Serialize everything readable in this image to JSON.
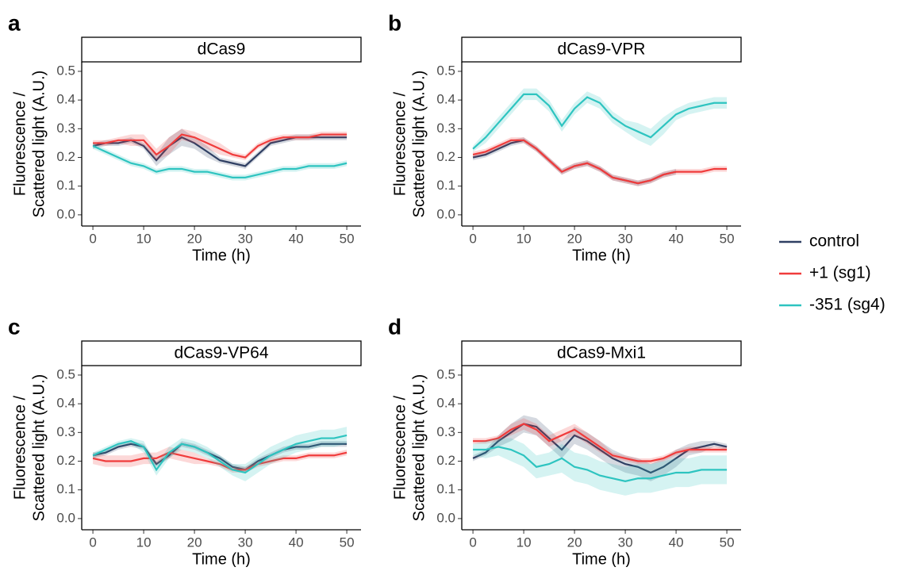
{
  "chart_data": [
    {
      "type": "line",
      "panel": "a",
      "title": "dCas9",
      "xlabel": "Time (h)",
      "ylabel": [
        "Fluorescence /",
        "Scattered light (A.U.)"
      ],
      "legend": "right",
      "xlim": [
        -2.2,
        52.8
      ],
      "ylim": [
        -0.039,
        0.533
      ],
      "xticks": [
        0,
        10,
        20,
        30,
        40,
        50
      ],
      "yticks": [
        {
          "value": 0,
          "label": "0.0"
        },
        0.1,
        0.2,
        0.3,
        0.4,
        0.5
      ],
      "x": [
        0,
        2.5,
        5,
        7.5,
        10,
        12.5,
        15,
        17.5,
        20,
        22.5,
        25,
        27.5,
        30,
        32.5,
        35,
        37.5,
        40,
        42.5,
        45,
        47.5,
        50
      ],
      "series": [
        {
          "name": "control",
          "color": "#2f3f63",
          "values": [
            0.24,
            0.25,
            0.25,
            0.26,
            0.24,
            0.19,
            0.24,
            0.27,
            0.25,
            0.22,
            0.19,
            0.18,
            0.17,
            0.21,
            0.25,
            0.26,
            0.27,
            0.27,
            0.27,
            0.27,
            0.27
          ],
          "errors": [
            0.01,
            0.01,
            0.01,
            0.01,
            0.01,
            0.02,
            0.03,
            0.03,
            0.02,
            0.02,
            0.01,
            0.01,
            0.01,
            0.01,
            0.01,
            0.01,
            0.01,
            0.01,
            0.01,
            0.01,
            0.01
          ]
        },
        {
          "name": "+1 (sg1)",
          "color": "#f03c3c",
          "values": [
            0.25,
            0.25,
            0.26,
            0.26,
            0.26,
            0.21,
            0.24,
            0.28,
            0.27,
            0.25,
            0.23,
            0.21,
            0.2,
            0.24,
            0.26,
            0.27,
            0.27,
            0.27,
            0.28,
            0.28,
            0.28
          ],
          "errors": [
            0.01,
            0.01,
            0.01,
            0.02,
            0.02,
            0.02,
            0.03,
            0.02,
            0.02,
            0.02,
            0.02,
            0.01,
            0.01,
            0.01,
            0.01,
            0.01,
            0.01,
            0.01,
            0.01,
            0.01,
            0.01
          ]
        },
        {
          "name": "-351 (sg4)",
          "color": "#2ec4c0",
          "values": [
            0.24,
            0.22,
            0.2,
            0.18,
            0.17,
            0.15,
            0.16,
            0.16,
            0.15,
            0.15,
            0.14,
            0.13,
            0.13,
            0.14,
            0.15,
            0.16,
            0.16,
            0.17,
            0.17,
            0.17,
            0.18
          ],
          "errors": [
            0.01,
            0.01,
            0.01,
            0.01,
            0.01,
            0.01,
            0.01,
            0.01,
            0.01,
            0.01,
            0.01,
            0.01,
            0.01,
            0.01,
            0.01,
            0.01,
            0.01,
            0.01,
            0.01,
            0.01,
            0.01
          ]
        }
      ]
    },
    {
      "type": "line",
      "panel": "b",
      "title": "dCas9-VPR",
      "xlabel": "Time (h)",
      "ylabel": [
        "Fluorescence /",
        "Scattered light (A.U.)"
      ],
      "xlim": [
        -2.2,
        52.8
      ],
      "ylim": [
        -0.039,
        0.533
      ],
      "xticks": [
        0,
        10,
        20,
        30,
        40,
        50
      ],
      "yticks": [
        {
          "value": 0,
          "label": "0.0"
        },
        0.1,
        0.2,
        0.3,
        0.4,
        0.5
      ],
      "x": [
        0,
        2.5,
        5,
        7.5,
        10,
        12.5,
        15,
        17.5,
        20,
        22.5,
        25,
        27.5,
        30,
        32.5,
        35,
        37.5,
        40,
        42.5,
        45,
        47.5,
        50
      ],
      "series": [
        {
          "color": "#2f3f63",
          "values": [
            0.2,
            0.21,
            0.23,
            0.25,
            0.26,
            0.23,
            0.19,
            0.15,
            0.17,
            0.18,
            0.16,
            0.13,
            0.12,
            0.11,
            0.12,
            0.14,
            0.15,
            null,
            null,
            null,
            null
          ],
          "errors": [
            0.01,
            0.01,
            0.01,
            0.01,
            0.01,
            0.01,
            0.01,
            0.01,
            0.01,
            0.01,
            0.01,
            0.01,
            0.01,
            0.01,
            0.01,
            0.01,
            0.01,
            null,
            null,
            null,
            null
          ]
        },
        {
          "color": "#f03c3c",
          "values": [
            0.21,
            0.22,
            0.24,
            0.26,
            0.26,
            0.23,
            0.19,
            0.15,
            0.17,
            0.18,
            0.16,
            0.13,
            0.12,
            0.11,
            0.12,
            0.14,
            0.15,
            0.15,
            0.15,
            0.16,
            0.16
          ],
          "errors": [
            0.01,
            0.01,
            0.01,
            0.01,
            0.01,
            0.01,
            0.01,
            0.01,
            0.01,
            0.01,
            0.01,
            0.01,
            0.01,
            0.01,
            0.01,
            0.01,
            0.01,
            0.01,
            0.01,
            0.01,
            0.01
          ]
        },
        {
          "color": "#2ec4c0",
          "values": [
            0.23,
            0.27,
            0.32,
            0.37,
            0.42,
            0.42,
            0.38,
            0.31,
            0.37,
            0.41,
            0.39,
            0.34,
            0.31,
            0.29,
            0.27,
            0.31,
            0.35,
            0.37,
            0.38,
            0.39,
            0.39
          ],
          "errors": [
            0.01,
            0.02,
            0.02,
            0.02,
            0.02,
            0.02,
            0.02,
            0.02,
            0.02,
            0.02,
            0.02,
            0.02,
            0.02,
            0.03,
            0.03,
            0.03,
            0.02,
            0.02,
            0.02,
            0.02,
            0.02
          ]
        }
      ]
    },
    {
      "type": "line",
      "panel": "c",
      "title": "dCas9-VP64",
      "xlabel": "Time (h)",
      "ylabel": [
        "Fluorescence /",
        "Scattered light (A.U.)"
      ],
      "xlim": [
        -2.2,
        52.8
      ],
      "ylim": [
        -0.039,
        0.533
      ],
      "xticks": [
        0,
        10,
        20,
        30,
        40,
        50
      ],
      "yticks": [
        {
          "value": 0,
          "label": "0.0"
        },
        0.1,
        0.2,
        0.3,
        0.4,
        0.5
      ],
      "x": [
        0,
        2.5,
        5,
        7.5,
        10,
        12.5,
        15,
        17.5,
        20,
        22.5,
        25,
        27.5,
        30,
        32.5,
        35,
        37.5,
        40,
        42.5,
        45,
        47.5,
        50
      ],
      "series": [
        {
          "color": "#2f3f63",
          "values": [
            0.22,
            0.23,
            0.25,
            0.26,
            0.25,
            0.19,
            0.22,
            0.26,
            0.25,
            0.23,
            0.21,
            0.18,
            0.17,
            0.2,
            0.22,
            0.24,
            0.25,
            0.25,
            0.26,
            0.26,
            0.26
          ],
          "errors": [
            0.01,
            0.01,
            0.01,
            0.01,
            0.01,
            0.01,
            0.01,
            0.01,
            0.01,
            0.01,
            0.01,
            0.01,
            0.01,
            0.01,
            0.01,
            0.01,
            0.01,
            0.01,
            0.01,
            0.01,
            0.01
          ]
        },
        {
          "color": "#f03c3c",
          "values": [
            0.21,
            0.2,
            0.2,
            0.2,
            0.21,
            0.21,
            0.23,
            0.22,
            0.21,
            0.2,
            0.19,
            0.17,
            0.17,
            0.19,
            0.2,
            0.21,
            0.21,
            0.22,
            0.22,
            0.22,
            0.23
          ],
          "errors": [
            0.02,
            0.02,
            0.02,
            0.02,
            0.02,
            0.02,
            0.02,
            0.02,
            0.02,
            0.01,
            0.01,
            0.01,
            0.01,
            0.01,
            0.01,
            0.01,
            0.01,
            0.01,
            0.01,
            0.01,
            0.01
          ]
        },
        {
          "color": "#2ec4c0",
          "values": [
            0.22,
            0.24,
            0.26,
            0.27,
            0.25,
            0.17,
            0.23,
            0.26,
            0.25,
            0.23,
            0.2,
            0.17,
            0.16,
            0.19,
            0.22,
            0.24,
            0.26,
            0.27,
            0.28,
            0.28,
            0.29
          ],
          "errors": [
            0.01,
            0.01,
            0.01,
            0.01,
            0.02,
            0.02,
            0.02,
            0.02,
            0.02,
            0.02,
            0.02,
            0.02,
            0.03,
            0.03,
            0.03,
            0.03,
            0.03,
            0.03,
            0.03,
            0.03,
            0.03
          ]
        }
      ]
    },
    {
      "type": "line",
      "panel": "d",
      "title": "dCas9-Mxi1",
      "xlabel": "Time (h)",
      "ylabel": [
        "Fluorescence /",
        "Scattered light (A.U.)"
      ],
      "xlim": [
        -2.2,
        52.8
      ],
      "ylim": [
        -0.039,
        0.533
      ],
      "xticks": [
        0,
        10,
        20,
        30,
        40,
        50
      ],
      "yticks": [
        {
          "value": 0,
          "label": "0.0"
        },
        0.1,
        0.2,
        0.3,
        0.4,
        0.5
      ],
      "x": [
        0,
        2.5,
        5,
        7.5,
        10,
        12.5,
        15,
        17.5,
        20,
        22.5,
        25,
        27.5,
        30,
        32.5,
        35,
        37.5,
        40,
        42.5,
        45,
        47.5,
        50
      ],
      "series": [
        {
          "color": "#2f3f63",
          "values": [
            0.21,
            0.23,
            0.27,
            0.3,
            0.33,
            0.32,
            0.28,
            0.24,
            0.29,
            0.27,
            0.24,
            0.21,
            0.19,
            0.18,
            0.16,
            0.18,
            0.21,
            0.24,
            0.25,
            0.26,
            0.25
          ],
          "errors": [
            0.01,
            0.01,
            0.02,
            0.03,
            0.03,
            0.03,
            0.03,
            0.03,
            0.03,
            0.03,
            0.03,
            0.03,
            0.03,
            0.03,
            0.03,
            0.03,
            0.03,
            0.02,
            0.02,
            0.01,
            0.01
          ]
        },
        {
          "color": "#f03c3c",
          "values": [
            0.27,
            0.27,
            0.28,
            0.31,
            0.33,
            0.31,
            0.27,
            0.29,
            0.31,
            0.28,
            0.25,
            0.22,
            0.21,
            0.2,
            0.2,
            0.21,
            0.23,
            0.24,
            0.24,
            0.24,
            0.24
          ],
          "errors": [
            0.01,
            0.01,
            0.01,
            0.02,
            0.02,
            0.02,
            0.02,
            0.02,
            0.02,
            0.02,
            0.02,
            0.01,
            0.01,
            0.01,
            0.01,
            0.01,
            0.01,
            0.01,
            0.01,
            0.01,
            0.01
          ]
        },
        {
          "color": "#2ec4c0",
          "values": [
            0.24,
            0.24,
            0.25,
            0.24,
            0.22,
            0.18,
            0.19,
            0.21,
            0.18,
            0.17,
            0.15,
            0.14,
            0.13,
            0.14,
            0.14,
            0.15,
            0.16,
            0.16,
            0.17,
            0.17,
            0.17
          ],
          "errors": [
            0.02,
            0.03,
            0.03,
            0.04,
            0.04,
            0.04,
            0.04,
            0.05,
            0.05,
            0.05,
            0.05,
            0.05,
            0.05,
            0.05,
            0.05,
            0.05,
            0.05,
            0.05,
            0.05,
            0.05,
            0.05
          ]
        }
      ]
    }
  ]
}
